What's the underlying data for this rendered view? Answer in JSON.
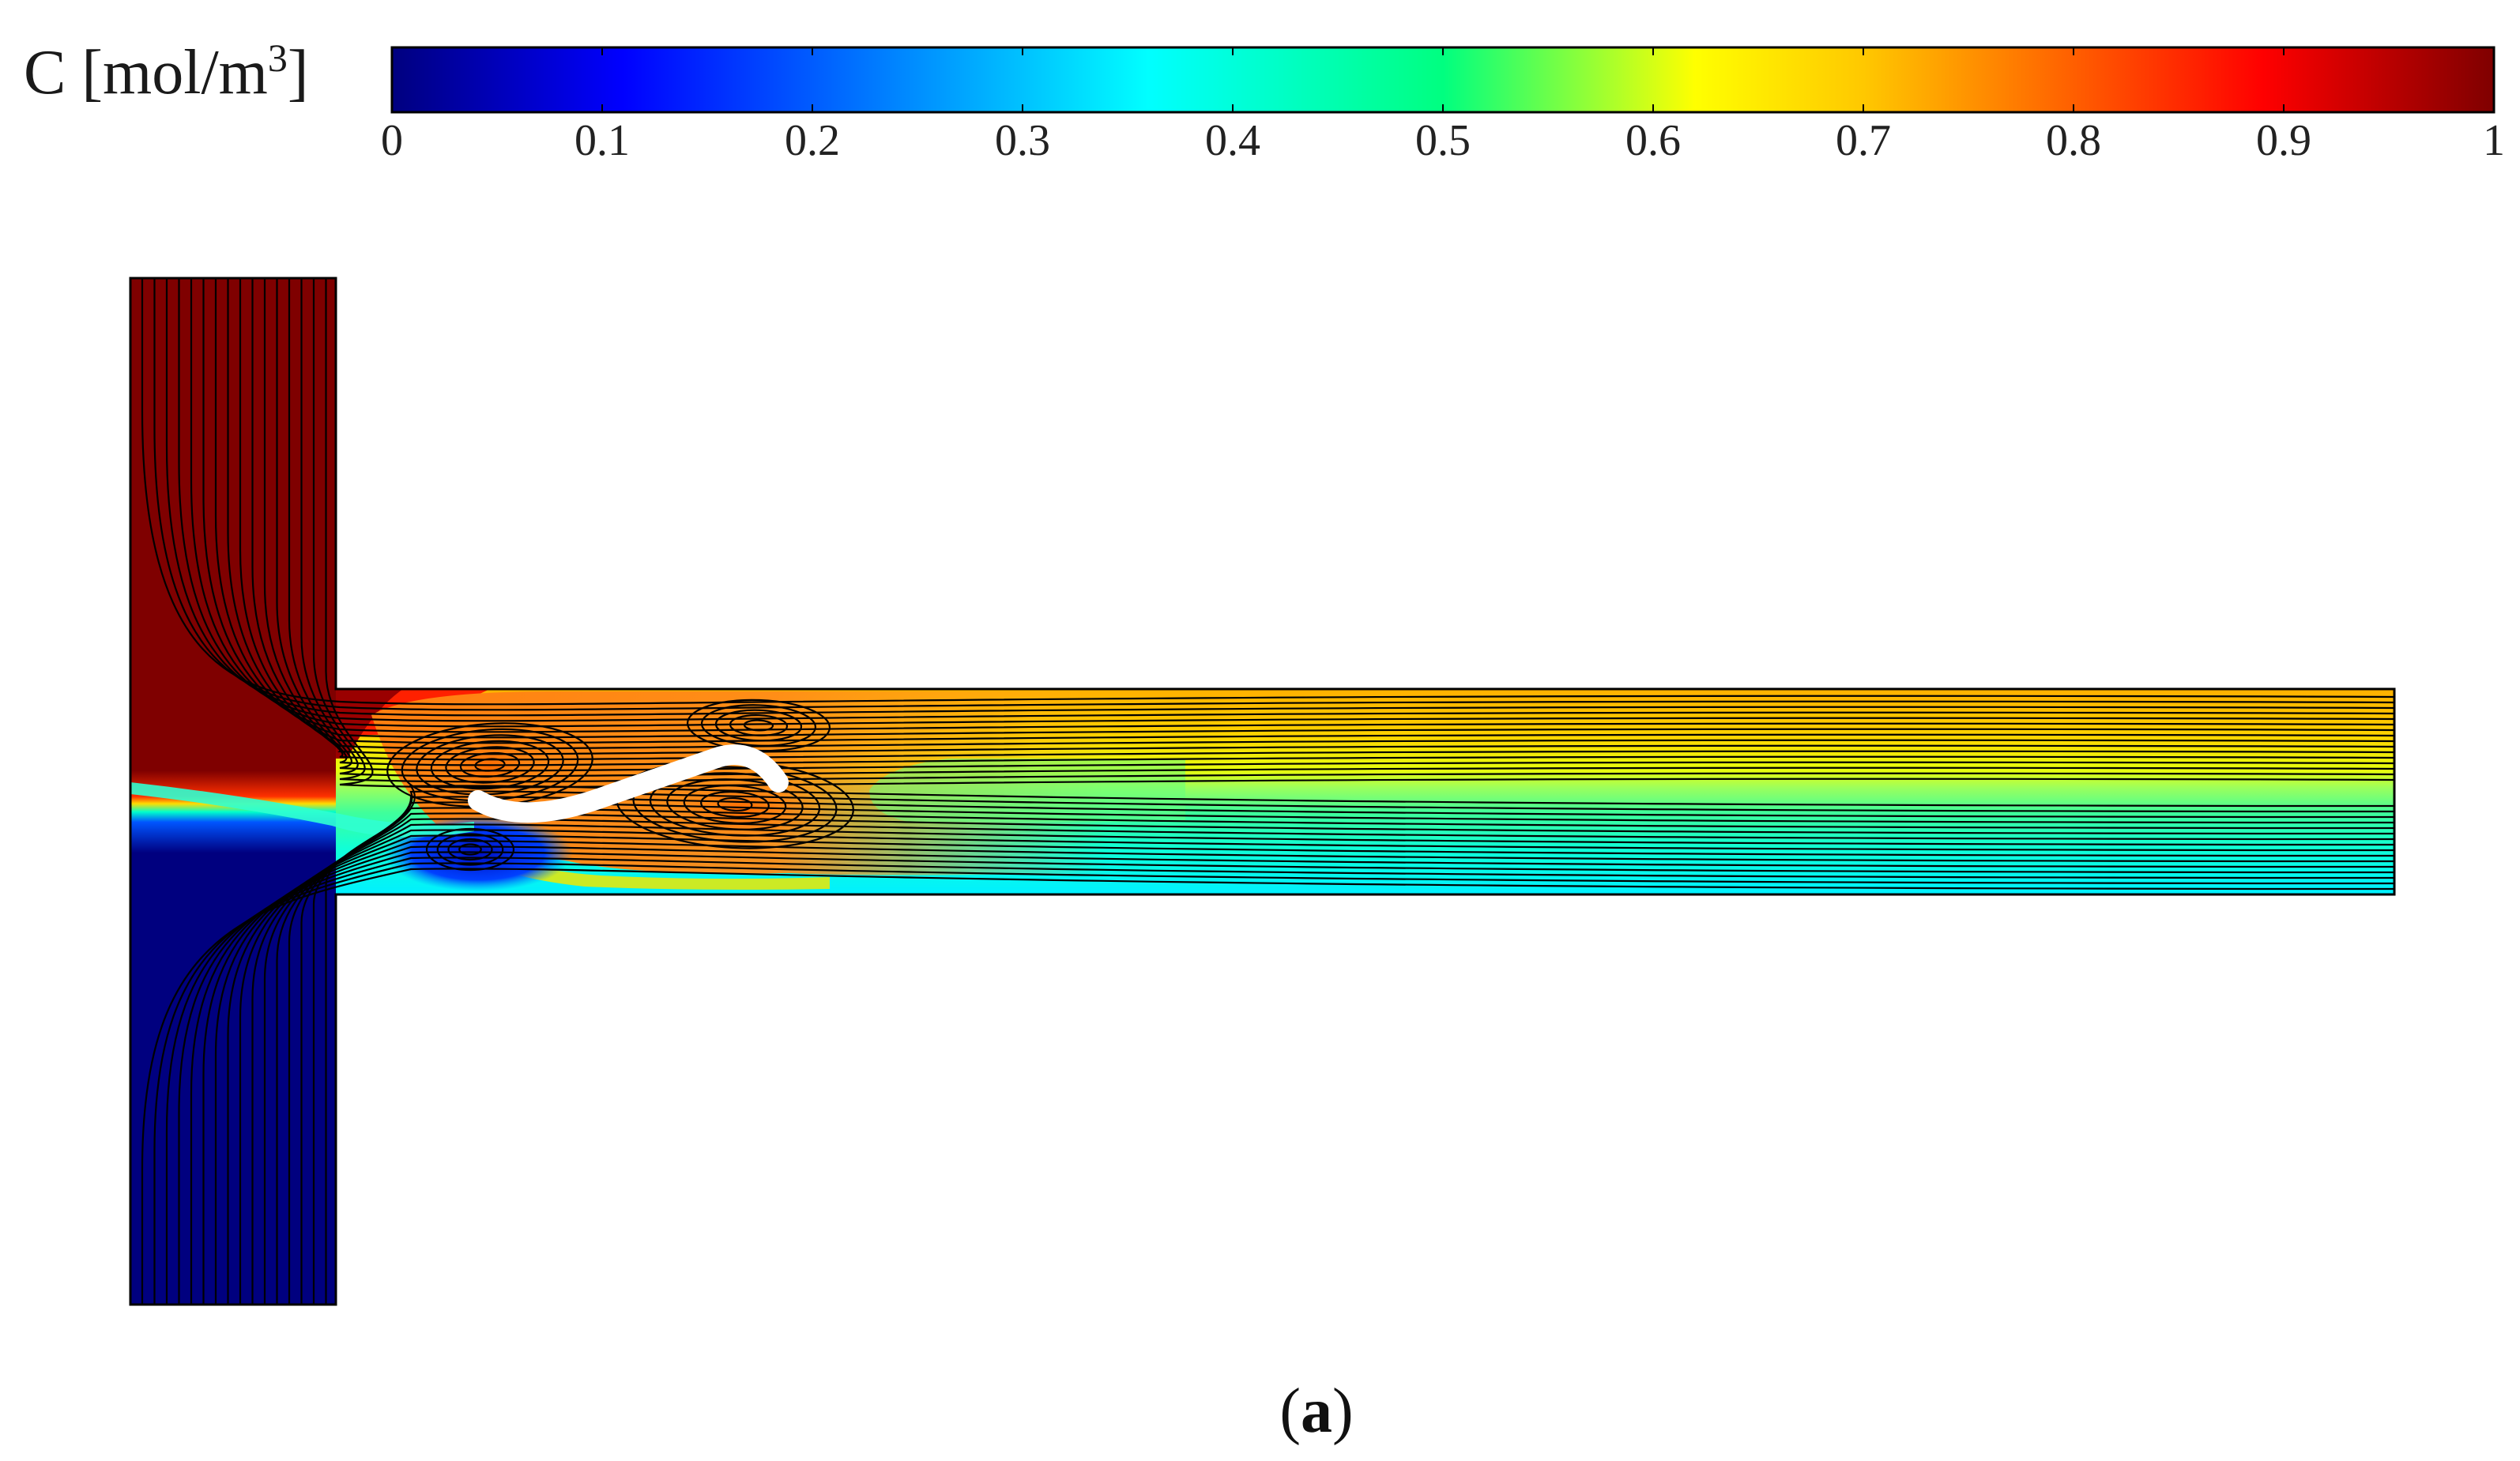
{
  "colorbar": {
    "title_prefix": "C [mol/m",
    "title_superscript": "3",
    "title_suffix": "]",
    "ticks": [
      "0",
      "0.1",
      "0.2",
      "0.3",
      "0.4",
      "0.5",
      "0.6",
      "0.7",
      "0.8",
      "0.9",
      "1"
    ],
    "range": [
      0,
      1
    ],
    "colormap": "jet",
    "colormap_stops": [
      "#00007f",
      "#0000ff",
      "#00ffff",
      "#ffff00",
      "#ff0000",
      "#7f0000"
    ]
  },
  "panel_label": {
    "open": "(",
    "letter": "a",
    "close": ")"
  },
  "colors": {
    "inlet_top": "#7f0000",
    "inlet_bottom": "#00007f",
    "outlet_top": "#ffd800",
    "outlet_middle": "#3fff9c",
    "outlet_bottom": "#00ffee",
    "mixing_zone": "#ff8a1a",
    "streamline": "#000000",
    "baffle": "#ffffff"
  },
  "icons": {
    "baffle": "s-shaped-baffle"
  }
}
